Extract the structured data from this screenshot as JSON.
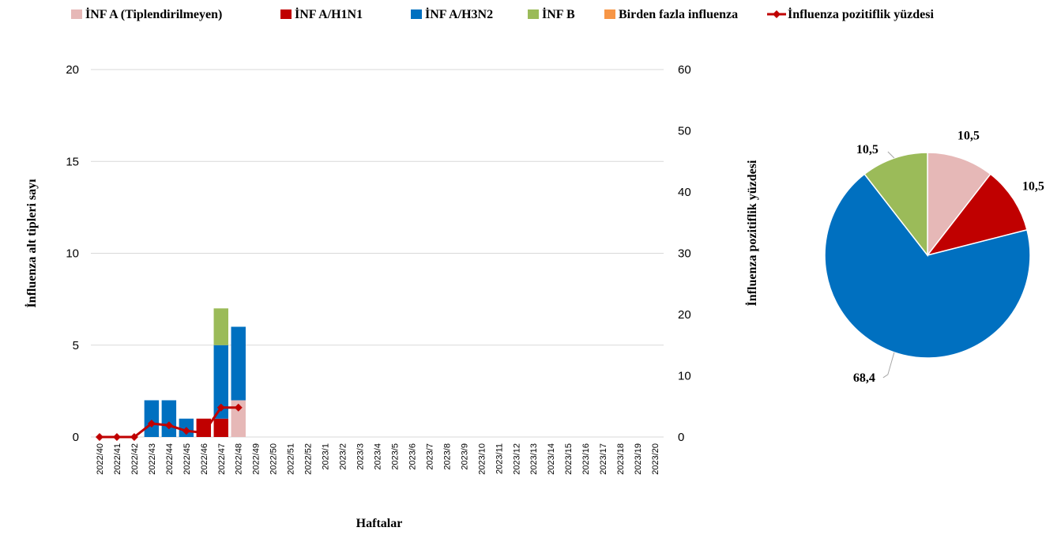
{
  "chart_data": [
    {
      "type": "bar",
      "stacked": true,
      "categories": [
        "2022/40",
        "2022/41",
        "2022/42",
        "2022/43",
        "2022/44",
        "2022/45",
        "2022/46",
        "2022/47",
        "2022/48",
        "2022/49",
        "2022/50",
        "2022/51",
        "2022/52",
        "2023/1",
        "2023/2",
        "2023/3",
        "2023/4",
        "2023/5",
        "2023/6",
        "2023/7",
        "2023/8",
        "2023/9",
        "2023/10",
        "2023/11",
        "2023/12",
        "2023/13",
        "2023/14",
        "2023/15",
        "2023/16",
        "2023/17",
        "2023/18",
        "2023/19",
        "2023/20"
      ],
      "series": [
        {
          "name": "İNF A (Tiplendirilmeyen)",
          "color": "#E6B8B7",
          "values": [
            0,
            0,
            0,
            0,
            0,
            0,
            0,
            0,
            2,
            0,
            0,
            0,
            0,
            0,
            0,
            0,
            0,
            0,
            0,
            0,
            0,
            0,
            0,
            0,
            0,
            0,
            0,
            0,
            0,
            0,
            0,
            0,
            0
          ]
        },
        {
          "name": "İNF A/H1N1",
          "color": "#C00000",
          "values": [
            0,
            0,
            0,
            0,
            0,
            0,
            1,
            1,
            0,
            0,
            0,
            0,
            0,
            0,
            0,
            0,
            0,
            0,
            0,
            0,
            0,
            0,
            0,
            0,
            0,
            0,
            0,
            0,
            0,
            0,
            0,
            0,
            0
          ]
        },
        {
          "name": "İNF A/H3N2",
          "color": "#0070C0",
          "values": [
            0,
            0,
            0,
            2,
            2,
            1,
            0,
            4,
            4,
            0,
            0,
            0,
            0,
            0,
            0,
            0,
            0,
            0,
            0,
            0,
            0,
            0,
            0,
            0,
            0,
            0,
            0,
            0,
            0,
            0,
            0,
            0,
            0
          ]
        },
        {
          "name": "İNF B",
          "color": "#9BBB59",
          "values": [
            0,
            0,
            0,
            0,
            0,
            0,
            0,
            2,
            0,
            0,
            0,
            0,
            0,
            0,
            0,
            0,
            0,
            0,
            0,
            0,
            0,
            0,
            0,
            0,
            0,
            0,
            0,
            0,
            0,
            0,
            0,
            0,
            0
          ]
        },
        {
          "name": "Birden fazla influenza",
          "color": "#F79646",
          "values": [
            0,
            0,
            0,
            0,
            0,
            0,
            0,
            0,
            0,
            0,
            0,
            0,
            0,
            0,
            0,
            0,
            0,
            0,
            0,
            0,
            0,
            0,
            0,
            0,
            0,
            0,
            0,
            0,
            0,
            0,
            0,
            0,
            0
          ]
        }
      ],
      "line_series": {
        "name": "İnfluenza pozitiflik yüzdesi",
        "color": "#C00000",
        "axis": "right",
        "values": [
          0,
          0,
          0,
          2.2,
          1.9,
          1.0,
          0.7,
          4.8,
          4.8,
          null,
          null,
          null,
          null,
          null,
          null,
          null,
          null,
          null,
          null,
          null,
          null,
          null,
          null,
          null,
          null,
          null,
          null,
          null,
          null,
          null,
          null,
          null,
          null
        ]
      },
      "ylabel": "İnfluenza alt tipleri sayı",
      "ylim": [
        0,
        20
      ],
      "yticks": [
        0,
        5,
        10,
        15,
        20
      ],
      "y2label": "İnfluenza pozitiflik yüzdesi",
      "y2lim": [
        0,
        60
      ],
      "y2ticks": [
        0,
        10,
        20,
        30,
        40,
        50,
        60
      ],
      "xlabel": "Haftalar",
      "grid": true,
      "legend_position": "top"
    },
    {
      "type": "pie",
      "labels": [
        "İNF A (Tiplendirilmeyen)",
        "İNF A/H1N1",
        "İNF A/H3N2",
        "İNF B"
      ],
      "values": [
        10.5,
        10.5,
        68.4,
        10.5
      ],
      "value_labels": [
        "10,5",
        "10,5",
        "68,4",
        "10,5"
      ],
      "colors": [
        "#E6B8B7",
        "#C00000",
        "#0070C0",
        "#9BBB59"
      ]
    }
  ]
}
